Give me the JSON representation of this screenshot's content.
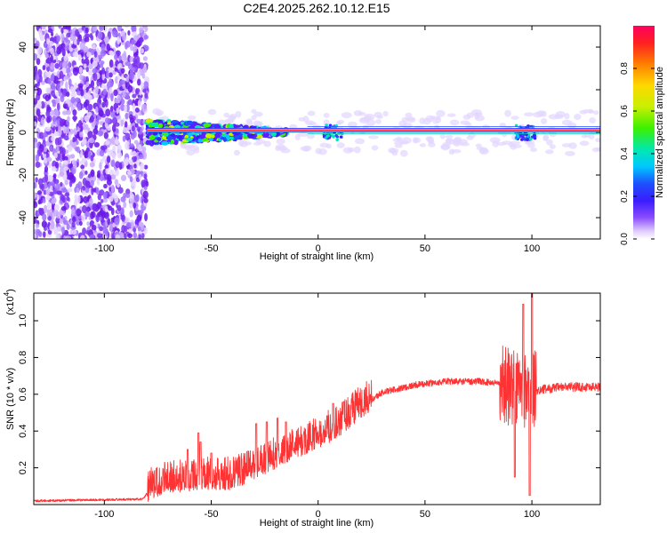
{
  "title": "C2E4.2025.262.10.12.E15",
  "chart_data": [
    {
      "type": "heatmap",
      "panel": "top",
      "xlabel": "Height of straight line (km)",
      "ylabel": "Frequency (Hz)",
      "xlim": [
        -133,
        132
      ],
      "ylim": [
        -50,
        50
      ],
      "xticks": [
        -100,
        -50,
        0,
        50,
        100
      ],
      "yticks": [
        -40,
        -20,
        0,
        20,
        40
      ],
      "colorbar": {
        "label": "Normalized spectral amplitude",
        "range": [
          0,
          1
        ],
        "ticks": [
          0.0,
          0.2,
          0.4,
          0.6,
          0.8
        ],
        "colors": [
          "#ffffff",
          "#dcc6ff",
          "#8a4dff",
          "#3a1cff",
          "#1e50ff",
          "#00c8ff",
          "#00e8b0",
          "#3cf000",
          "#c8f000",
          "#ffd800",
          "#ff8000",
          "#ff2020",
          "#ff0060"
        ]
      },
      "features": {
        "noise_region_x": [
          -133,
          -80
        ],
        "line_frequency_hz": 1,
        "scatter_region_x": [
          -80,
          -15
        ],
        "bursts_x": [
          7,
          97
        ]
      }
    },
    {
      "type": "line",
      "panel": "bottom",
      "series_name": "SNR",
      "color": "#ff3333",
      "xlabel": "Height of straight line (km)",
      "ylabel": "SNR (10 * v/v)",
      "y_multiplier": "(x10",
      "y_multiplier_exp": "4",
      "y_multiplier_close": ")",
      "xlim": [
        -133,
        132
      ],
      "ylim": [
        0,
        1.15
      ],
      "xticks": [
        -100,
        -50,
        0,
        50,
        100
      ],
      "yticks": [
        0.2,
        0.4,
        0.6,
        0.8,
        1.0
      ],
      "ytick_labels": [
        "0.2",
        "0.4",
        "0.6",
        "0.8",
        "1.0"
      ],
      "trend_points": [
        {
          "x": -133,
          "y": 0.02
        },
        {
          "x": -82,
          "y": 0.03
        },
        {
          "x": -78,
          "y": 0.09
        },
        {
          "x": -70,
          "y": 0.12
        },
        {
          "x": -55,
          "y": 0.14
        },
        {
          "x": -40,
          "y": 0.14
        },
        {
          "x": -30,
          "y": 0.19
        },
        {
          "x": -20,
          "y": 0.25
        },
        {
          "x": -10,
          "y": 0.31
        },
        {
          "x": 0,
          "y": 0.36
        },
        {
          "x": 10,
          "y": 0.43
        },
        {
          "x": 20,
          "y": 0.53
        },
        {
          "x": 30,
          "y": 0.61
        },
        {
          "x": 45,
          "y": 0.65
        },
        {
          "x": 60,
          "y": 0.67
        },
        {
          "x": 75,
          "y": 0.67
        },
        {
          "x": 85,
          "y": 0.66
        },
        {
          "x": 100,
          "y": 0.62
        },
        {
          "x": 115,
          "y": 0.64
        },
        {
          "x": 132,
          "y": 0.64
        }
      ],
      "peaks": [
        {
          "x": -61,
          "y": 0.3
        },
        {
          "x": -56,
          "y": 0.39
        },
        {
          "x": -55,
          "y": 0.34
        },
        {
          "x": -50,
          "y": 0.28
        },
        {
          "x": -29,
          "y": 0.44
        },
        {
          "x": -24,
          "y": 0.45
        },
        {
          "x": -19,
          "y": 0.47
        },
        {
          "x": -15,
          "y": 0.45
        },
        {
          "x": 7,
          "y": 0.55
        },
        {
          "x": 12,
          "y": 0.56
        },
        {
          "x": 96,
          "y": 1.09
        },
        {
          "x": 100,
          "y": 1.15
        }
      ],
      "dips": [
        {
          "x": 92,
          "y": 0.15
        },
        {
          "x": 99,
          "y": 0.05
        }
      ]
    }
  ]
}
